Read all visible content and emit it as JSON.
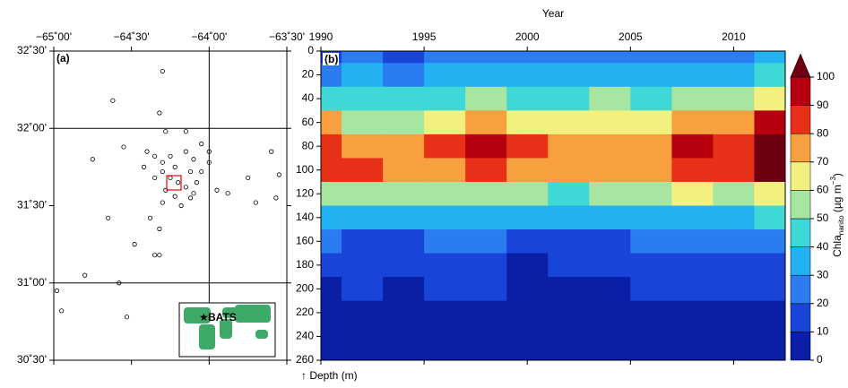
{
  "chart_data": [
    {
      "type": "scatter",
      "panel_label": "(a)",
      "xlim": [
        -65,
        -63.5
      ],
      "ylim": [
        30.5,
        32.5
      ],
      "xticks": [
        {
          "value": -65,
          "label": "−65˚00'"
        },
        {
          "value": -64.5,
          "label": "−64˚30'"
        },
        {
          "value": -64,
          "label": "−64˚00'"
        },
        {
          "value": -63.5,
          "label": "−63˚30'"
        }
      ],
      "yticks": [
        {
          "value": 30.5,
          "label": "30˚30'"
        },
        {
          "value": 31,
          "label": "31˚00'"
        },
        {
          "value": 31.5,
          "label": "31˚30'"
        },
        {
          "value": 32,
          "label": "32˚00'"
        },
        {
          "value": 32.5,
          "label": "32˚30'"
        }
      ],
      "grid": true,
      "color": "#000000",
      "inset_label": "BATS",
      "x": [
        -64.3,
        -64.62,
        -64.32,
        -64.28,
        -64.15,
        -64.05,
        -64.55,
        -64.75,
        -64.4,
        -64.35,
        -64.3,
        -64.25,
        -64.15,
        -64.1,
        -64.0,
        -64.0,
        -64.42,
        -64.3,
        -64.22,
        -64.12,
        -64.05,
        -64.35,
        -64.25,
        -64.2,
        -64.15,
        -64.08,
        -64.28,
        -64.3,
        -64.18,
        -63.95,
        -63.88,
        -63.75,
        -63.7,
        -63.6,
        -63.55,
        -63.57,
        -64.38,
        -64.32,
        -64.65,
        -64.48,
        -64.35,
        -64.32,
        -64.8,
        -64.98,
        -64.58,
        -64.95,
        -64.53,
        -64.12,
        -64.22,
        -64.1
      ],
      "y": [
        32.37,
        32.18,
        32.1,
        31.98,
        31.98,
        31.9,
        31.88,
        31.8,
        31.85,
        31.82,
        31.78,
        31.82,
        31.85,
        31.8,
        31.85,
        31.78,
        31.75,
        31.72,
        31.75,
        31.72,
        31.72,
        31.68,
        31.68,
        31.65,
        31.62,
        31.65,
        31.6,
        31.52,
        31.5,
        31.6,
        31.58,
        31.68,
        31.52,
        31.85,
        31.7,
        31.55,
        31.42,
        31.35,
        31.42,
        31.25,
        31.18,
        31.18,
        31.05,
        30.95,
        31.0,
        30.82,
        30.78,
        31.55,
        31.56,
        31.58
      ]
    },
    {
      "type": "heatmap",
      "panel_label": "(b)",
      "x_label": "Year",
      "y_label": "↑ Depth (m)",
      "colorbar_label": [
        "Chla",
        "nanito",
        " (µg m",
        "−3",
        ")"
      ],
      "xlim": [
        1990,
        2012.5
      ],
      "xticks": [
        1990,
        1995,
        2000,
        2005,
        2010
      ],
      "ylim": [
        0,
        260
      ],
      "yticks": [
        0,
        20,
        40,
        60,
        80,
        100,
        120,
        140,
        160,
        180,
        200,
        220,
        240,
        260
      ],
      "invert_y": true,
      "x": [
        1990,
        1992,
        1994,
        1996,
        1998,
        2000,
        2002,
        2004,
        2006,
        2008,
        2010,
        2012
      ],
      "y": [
        0,
        20,
        40,
        60,
        80,
        100,
        120,
        140,
        160,
        180,
        200,
        220,
        240,
        260
      ],
      "z": [
        [
          15,
          20,
          18,
          22,
          25,
          20,
          22,
          25,
          20,
          22,
          25,
          30
        ],
        [
          25,
          30,
          28,
          30,
          35,
          30,
          30,
          35,
          30,
          30,
          35,
          45
        ],
        [
          40,
          45,
          40,
          45,
          55,
          45,
          45,
          50,
          45,
          50,
          55,
          65
        ],
        [
          70,
          55,
          55,
          60,
          75,
          65,
          60,
          60,
          60,
          70,
          75,
          90
        ],
        [
          85,
          75,
          70,
          80,
          95,
          80,
          70,
          75,
          75,
          90,
          85,
          110
        ],
        [
          80,
          80,
          70,
          75,
          85,
          75,
          70,
          70,
          75,
          85,
          80,
          105
        ],
        [
          55,
          50,
          50,
          50,
          55,
          50,
          45,
          50,
          55,
          60,
          55,
          65
        ],
        [
          35,
          30,
          30,
          30,
          35,
          30,
          30,
          30,
          35,
          35,
          35,
          40
        ],
        [
          20,
          18,
          18,
          20,
          20,
          18,
          18,
          18,
          20,
          20,
          20,
          25
        ],
        [
          12,
          15,
          10,
          12,
          15,
          8,
          10,
          10,
          12,
          12,
          15,
          15
        ],
        [
          8,
          10,
          8,
          10,
          12,
          8,
          8,
          8,
          10,
          10,
          10,
          12
        ],
        [
          5,
          6,
          5,
          5,
          6,
          5,
          5,
          5,
          6,
          5,
          6,
          6
        ],
        [
          4,
          4,
          4,
          4,
          4,
          4,
          4,
          4,
          4,
          4,
          4,
          4
        ],
        [
          3,
          3,
          3,
          3,
          3,
          3,
          3,
          3,
          3,
          3,
          3,
          3
        ]
      ],
      "clim": [
        0,
        100
      ],
      "cticks": [
        0,
        10,
        20,
        30,
        40,
        50,
        60,
        70,
        80,
        90,
        100
      ],
      "colors": [
        "#0a1ea6",
        "#1844d8",
        "#2a7cf0",
        "#22b2f2",
        "#3ed8d6",
        "#a6e6a0",
        "#f2f07e",
        "#f8a040",
        "#e63018",
        "#b60010",
        "#6e0012"
      ]
    }
  ]
}
